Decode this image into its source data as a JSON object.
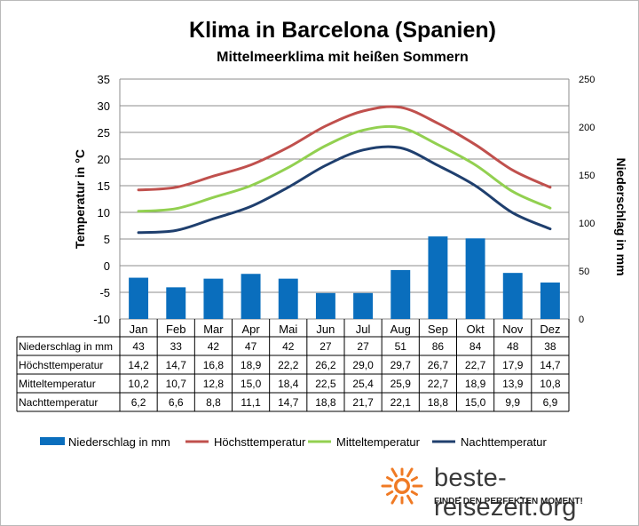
{
  "chart_data": {
    "type": "bar+line",
    "title": "Klima in Barcelona (Spanien)",
    "subtitle": "Mittelmeerklima mit heißen Sommern",
    "categories": [
      "Jan",
      "Feb",
      "Mar",
      "Apr",
      "Mai",
      "Jun",
      "Jul",
      "Aug",
      "Sep",
      "Okt",
      "Nov",
      "Dez"
    ],
    "ylabel_left": "Temperatur in °C",
    "ylabel_right": "Niederschlag in mm",
    "ylim_left": [
      -10,
      35
    ],
    "yticks_left": [
      -10,
      -5,
      0,
      5,
      10,
      15,
      20,
      25,
      30,
      35
    ],
    "ylim_right": [
      0,
      250
    ],
    "yticks_right": [
      0,
      50,
      100,
      150,
      200,
      250
    ],
    "grid": true,
    "legend_position": "bottom",
    "bar_series": {
      "name": "Niederschlag in mm",
      "axis": "right",
      "color": "#0a6ebd",
      "values": [
        43,
        33,
        42,
        47,
        42,
        27,
        27,
        51,
        86,
        84,
        48,
        38
      ]
    },
    "line_series": [
      {
        "name": "Höchsttemperatur",
        "color": "#c0504d",
        "values": [
          14.2,
          14.7,
          16.8,
          18.9,
          22.2,
          26.2,
          29.0,
          29.7,
          26.7,
          22.7,
          17.9,
          14.7
        ]
      },
      {
        "name": "Mitteltemperatur",
        "color": "#92d050",
        "values": [
          10.2,
          10.7,
          12.8,
          15.0,
          18.4,
          22.5,
          25.4,
          25.9,
          22.7,
          18.9,
          13.9,
          10.8
        ]
      },
      {
        "name": "Nachttemperatur",
        "color": "#1f3f6e",
        "values": [
          6.2,
          6.6,
          8.8,
          11.1,
          14.7,
          18.8,
          21.7,
          22.1,
          18.8,
          15.0,
          9.9,
          6.9
        ]
      }
    ],
    "table": {
      "rows": [
        {
          "label": "Niederschlag in mm",
          "values": [
            "43",
            "33",
            "42",
            "47",
            "42",
            "27",
            "27",
            "51",
            "86",
            "84",
            "48",
            "38"
          ]
        },
        {
          "label": "Höchsttemperatur",
          "values": [
            "14,2",
            "14,7",
            "16,8",
            "18,9",
            "22,2",
            "26,2",
            "29,0",
            "29,7",
            "26,7",
            "22,7",
            "17,9",
            "14,7"
          ]
        },
        {
          "label": "Mitteltemperatur",
          "values": [
            "10,2",
            "10,7",
            "12,8",
            "15,0",
            "18,4",
            "22,5",
            "25,4",
            "25,9",
            "22,7",
            "18,9",
            "13,9",
            "10,8"
          ]
        },
        {
          "label": "Nachttemperatur",
          "values": [
            "6,2",
            "6,6",
            "8,8",
            "11,1",
            "14,7",
            "18,8",
            "21,7",
            "22,1",
            "18,8",
            "15,0",
            "9,9",
            "6,9"
          ]
        }
      ]
    }
  },
  "branding": {
    "site": "beste-reisezeit.org",
    "tagline": "FINDE DEN PERFEKTEN MOMENT!",
    "logo_icon": "sun-icon",
    "logo_color": "#f07a24"
  }
}
